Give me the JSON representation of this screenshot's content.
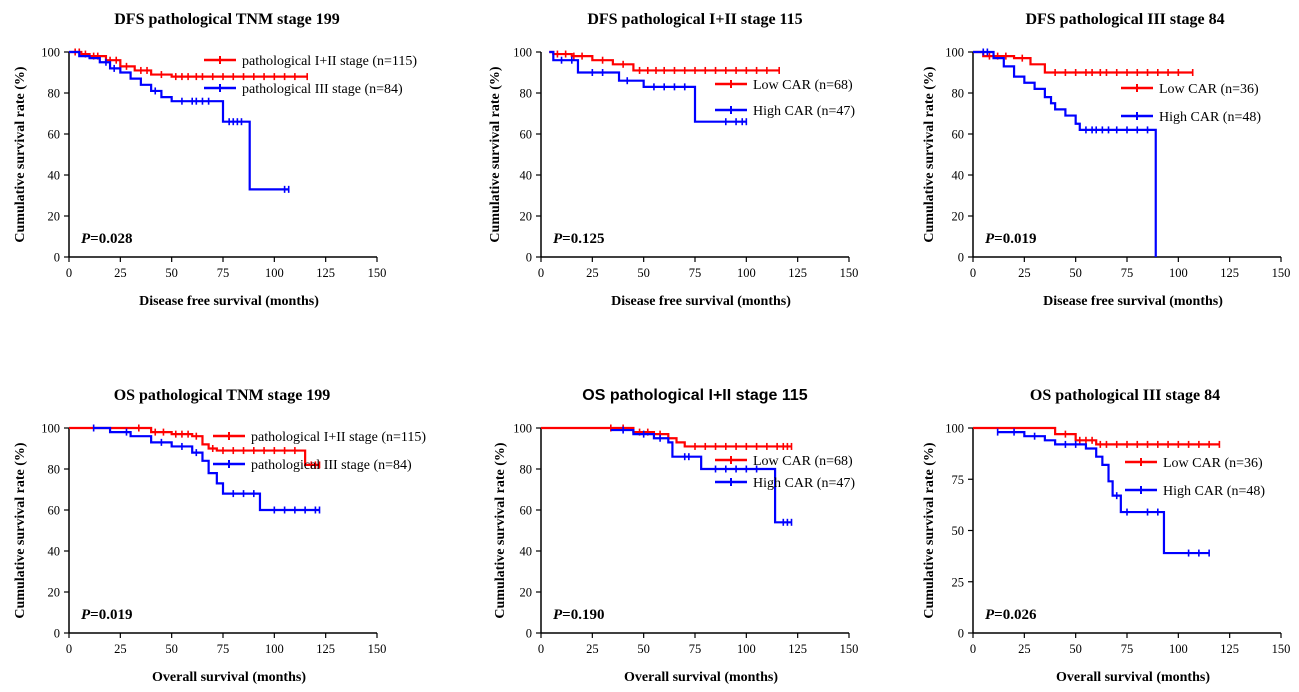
{
  "colors": {
    "series_1": "#ff0000",
    "series_2": "#0000ff",
    "axis": "#000000"
  },
  "chart_data": [
    {
      "type": "line",
      "title": "DFS  pathological TNM stage 199",
      "xlabel": "Disease free survival (months)",
      "ylabel": "Cumulative survival rate (%)",
      "xlim": [
        0,
        150
      ],
      "ylim": [
        0,
        100
      ],
      "xticks": [
        "0",
        "25",
        "50",
        "75",
        "100",
        "125",
        "150"
      ],
      "yticks": [
        "0",
        "20",
        "40",
        "60",
        "80",
        "100"
      ],
      "legend_position": "top-right",
      "p_prefix": "P",
      "p_value": "=0.028",
      "series": [
        {
          "name": "pathological I+II stage (n=115)",
          "color": "#ff0000",
          "points": [
            [
              0,
              100
            ],
            [
              6,
              99
            ],
            [
              10,
              98
            ],
            [
              18,
              96
            ],
            [
              25,
              93
            ],
            [
              32,
              91
            ],
            [
              40,
              89
            ],
            [
              50,
              88
            ],
            [
              116,
              88
            ]
          ],
          "censor": [
            3,
            5,
            8,
            12,
            14,
            20,
            23,
            28,
            35,
            38,
            45,
            52,
            55,
            58,
            62,
            65,
            70,
            75,
            80,
            85,
            90,
            95,
            100,
            105,
            110,
            116
          ]
        },
        {
          "name": "pathological III stage (n=84)",
          "color": "#0000ff",
          "points": [
            [
              0,
              100
            ],
            [
              5,
              98
            ],
            [
              10,
              97
            ],
            [
              15,
              95
            ],
            [
              20,
              92
            ],
            [
              25,
              90
            ],
            [
              30,
              87
            ],
            [
              35,
              84
            ],
            [
              40,
              81
            ],
            [
              45,
              78
            ],
            [
              50,
              76
            ],
            [
              75,
              76
            ],
            [
              75,
              66
            ],
            [
              88,
              66
            ],
            [
              88,
              33
            ],
            [
              107,
              33
            ]
          ],
          "censor": [
            18,
            22,
            42,
            55,
            60,
            62,
            65,
            68,
            78,
            80,
            82,
            84,
            105,
            107
          ]
        }
      ]
    },
    {
      "type": "line",
      "title": "DFS  pathological I+II stage 115",
      "xlabel": "Disease free survival (months)",
      "ylabel": "Cumulative survival rate (%)",
      "xlim": [
        0,
        150
      ],
      "ylim": [
        0,
        100
      ],
      "xticks": [
        "0",
        "25",
        "50",
        "75",
        "100",
        "125",
        "150"
      ],
      "yticks": [
        "0",
        "20",
        "40",
        "60",
        "80",
        "100"
      ],
      "legend_position": "right",
      "p_prefix": "P",
      "p_value": "=0.125",
      "series": [
        {
          "name": "Low CAR (n=68)",
          "color": "#ff0000",
          "points": [
            [
              4,
              100
            ],
            [
              6,
              99
            ],
            [
              15,
              98
            ],
            [
              25,
              96
            ],
            [
              35,
              94
            ],
            [
              45,
              91
            ],
            [
              116,
              91
            ]
          ],
          "censor": [
            8,
            12,
            16,
            20,
            30,
            40,
            48,
            52,
            56,
            60,
            65,
            70,
            75,
            80,
            85,
            90,
            95,
            100,
            105,
            110,
            116
          ]
        },
        {
          "name": "High CAR (n=47)",
          "color": "#0000ff",
          "points": [
            [
              4,
              100
            ],
            [
              6,
              96
            ],
            [
              18,
              90
            ],
            [
              38,
              86
            ],
            [
              50,
              83
            ],
            [
              75,
              83
            ],
            [
              75,
              66
            ],
            [
              100,
              66
            ]
          ],
          "censor": [
            10,
            15,
            25,
            30,
            42,
            55,
            60,
            65,
            70,
            90,
            95,
            98,
            100
          ]
        }
      ]
    },
    {
      "type": "line",
      "title": "DFS  pathological III stage 84",
      "xlabel": "Disease free survival (months)",
      "ylabel": "Cumulative survival rate (%)",
      "xlim": [
        0,
        150
      ],
      "ylim": [
        0,
        100
      ],
      "xticks": [
        "0",
        "25",
        "50",
        "75",
        "100",
        "125",
        "150"
      ],
      "yticks": [
        "0",
        "20",
        "40",
        "60",
        "80",
        "100"
      ],
      "legend_position": "right",
      "p_prefix": "P",
      "p_value": "=0.019",
      "series": [
        {
          "name": "Low CAR (n=36)",
          "color": "#ff0000",
          "points": [
            [
              0,
              100
            ],
            [
              5,
              98
            ],
            [
              20,
              97
            ],
            [
              28,
              94
            ],
            [
              35,
              90
            ],
            [
              107,
              90
            ]
          ],
          "censor": [
            8,
            12,
            16,
            24,
            40,
            45,
            50,
            55,
            58,
            62,
            65,
            70,
            75,
            80,
            85,
            90,
            95,
            100,
            107
          ]
        },
        {
          "name": "High CAR (n=48)",
          "color": "#0000ff",
          "points": [
            [
              0,
              100
            ],
            [
              10,
              97
            ],
            [
              15,
              93
            ],
            [
              20,
              88
            ],
            [
              25,
              85
            ],
            [
              30,
              82
            ],
            [
              35,
              78
            ],
            [
              38,
              75
            ],
            [
              40,
              72
            ],
            [
              45,
              69
            ],
            [
              50,
              65
            ],
            [
              52,
              62
            ],
            [
              89,
              62
            ],
            [
              89,
              0
            ]
          ],
          "censor": [
            5,
            7,
            55,
            58,
            60,
            63,
            66,
            70,
            75,
            80,
            85
          ]
        }
      ]
    },
    {
      "type": "line",
      "title": "OS  pathological TNM stage 199",
      "xlabel": "Overall survival (months)",
      "ylabel": "Cumulative survival rate (%)",
      "xlim": [
        0,
        150
      ],
      "ylim": [
        0,
        100
      ],
      "xticks": [
        "0",
        "25",
        "50",
        "75",
        "100",
        "125",
        "150"
      ],
      "yticks": [
        "0",
        "20",
        "40",
        "60",
        "80",
        "100"
      ],
      "legend_position": "top-right",
      "p_prefix": "P",
      "p_value": "=0.019",
      "series": [
        {
          "name": "pathological I+II stage (n=115)",
          "color": "#ff0000",
          "points": [
            [
              0,
              100
            ],
            [
              35,
              100
            ],
            [
              40,
              98
            ],
            [
              50,
              97
            ],
            [
              60,
              96
            ],
            [
              65,
              92
            ],
            [
              68,
              90
            ],
            [
              72,
              89
            ],
            [
              115,
              89
            ],
            [
              115,
              82
            ],
            [
              122,
              82
            ]
          ],
          "censor": [
            34,
            42,
            46,
            52,
            55,
            58,
            62,
            70,
            75,
            80,
            85,
            90,
            95,
            100,
            105,
            110,
            118,
            120,
            122
          ]
        },
        {
          "name": "pathological III stage (n=84)",
          "color": "#0000ff",
          "points": [
            [
              12,
              100
            ],
            [
              20,
              98
            ],
            [
              30,
              96
            ],
            [
              40,
              93
            ],
            [
              50,
              91
            ],
            [
              60,
              88
            ],
            [
              65,
              84
            ],
            [
              68,
              78
            ],
            [
              72,
              73
            ],
            [
              75,
              68
            ],
            [
              93,
              68
            ],
            [
              93,
              60
            ],
            [
              122,
              60
            ]
          ],
          "censor": [
            12,
            28,
            45,
            55,
            62,
            80,
            85,
            90,
            100,
            105,
            110,
            115,
            120,
            122
          ]
        }
      ]
    },
    {
      "type": "line",
      "title": "OS  pathological I+II stage 115",
      "xlabel": "Overall survival (months)",
      "ylabel": "Cumulative survival rate (%)",
      "xlim": [
        0,
        150
      ],
      "ylim": [
        0,
        100
      ],
      "xticks": [
        "0",
        "25",
        "50",
        "75",
        "100",
        "125",
        "150"
      ],
      "yticks": [
        "0",
        "20",
        "40",
        "60",
        "80",
        "100"
      ],
      "legend_position": "right",
      "p_prefix": "P",
      "p_value": "=0.190",
      "series": [
        {
          "name": "Low CAR (n=68)",
          "color": "#ff0000",
          "points": [
            [
              0,
              100
            ],
            [
              35,
              100
            ],
            [
              45,
              98
            ],
            [
              55,
              97
            ],
            [
              62,
              95
            ],
            [
              66,
              93
            ],
            [
              70,
              91
            ],
            [
              122,
              91
            ]
          ],
          "censor": [
            34,
            40,
            48,
            52,
            58,
            75,
            80,
            85,
            90,
            95,
            100,
            105,
            110,
            115,
            118,
            120,
            122
          ]
        },
        {
          "name": "High CAR (n=47)",
          "color": "#0000ff",
          "points": [
            [
              34,
              99
            ],
            [
              45,
              97
            ],
            [
              55,
              95
            ],
            [
              62,
              93
            ],
            [
              64,
              86
            ],
            [
              78,
              86
            ],
            [
              78,
              80
            ],
            [
              114,
              80
            ],
            [
              114,
              54
            ],
            [
              122,
              54
            ]
          ],
          "censor": [
            40,
            50,
            58,
            70,
            72,
            85,
            90,
            95,
            100,
            105,
            118,
            120,
            122
          ]
        }
      ]
    },
    {
      "type": "line",
      "title": "OS  pathological III stage 84",
      "xlabel": "Overall survival (months)",
      "ylabel": "Cumulative survival rate (%)",
      "xlim": [
        0,
        150
      ],
      "ylim": [
        0,
        100
      ],
      "xticks": [
        "0",
        "25",
        "50",
        "75",
        "100",
        "125",
        "150"
      ],
      "yticks": [
        "0",
        "25",
        "50",
        "75",
        "100"
      ],
      "legend_position": "right",
      "p_prefix": "P",
      "p_value": "=0.026",
      "series": [
        {
          "name": "Low CAR (n=36)",
          "color": "#ff0000",
          "points": [
            [
              0,
              100
            ],
            [
              35,
              100
            ],
            [
              40,
              97
            ],
            [
              50,
              94
            ],
            [
              60,
              92
            ],
            [
              120,
              92
            ]
          ],
          "censor": [
            45,
            52,
            55,
            58,
            62,
            65,
            70,
            75,
            80,
            85,
            90,
            95,
            100,
            105,
            110,
            115,
            120
          ]
        },
        {
          "name": "High CAR (n=48)",
          "color": "#0000ff",
          "points": [
            [
              12,
              98
            ],
            [
              25,
              96
            ],
            [
              35,
              94
            ],
            [
              40,
              92
            ],
            [
              55,
              90
            ],
            [
              60,
              86
            ],
            [
              63,
              82
            ],
            [
              66,
              74
            ],
            [
              68,
              67
            ],
            [
              72,
              59
            ],
            [
              93,
              59
            ],
            [
              93,
              39
            ],
            [
              115,
              39
            ]
          ],
          "censor": [
            12,
            20,
            30,
            45,
            50,
            70,
            75,
            85,
            90,
            105,
            110,
            115
          ]
        }
      ]
    }
  ]
}
